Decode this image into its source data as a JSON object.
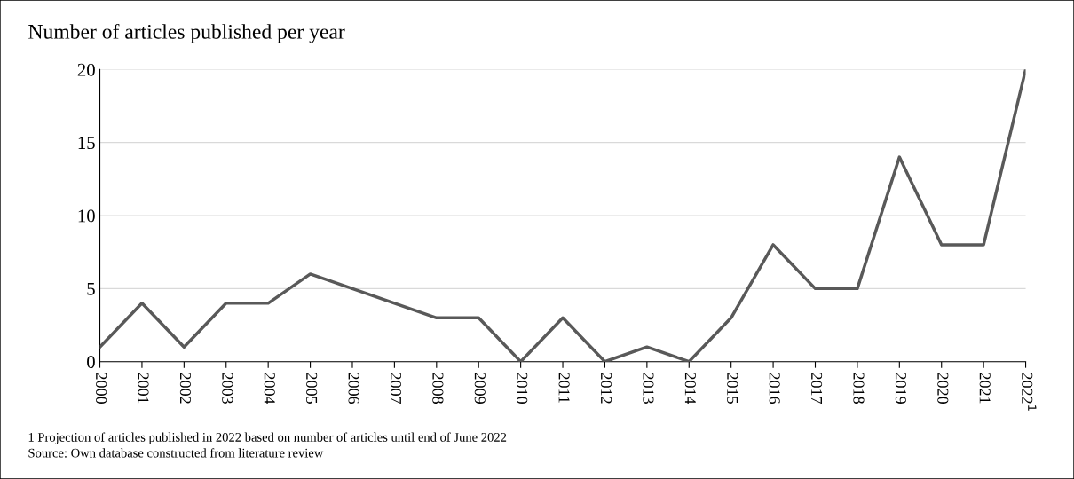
{
  "chart_data": {
    "type": "line",
    "title": "Number of articles published per year",
    "categories": [
      "2000",
      "2001",
      "2002",
      "2003",
      "2004",
      "2005",
      "2006",
      "2007",
      "2008",
      "2009",
      "2010",
      "2011",
      "2012",
      "2013",
      "2014",
      "2015",
      "2016",
      "2017",
      "2018",
      "2019",
      "2020",
      "2021",
      "2022$^{1}$"
    ],
    "series": [
      {
        "color": "#595959",
        "values": [
          1,
          4,
          1,
          4,
          4,
          6,
          5,
          4,
          3,
          3,
          0,
          3,
          0,
          1,
          0,
          3,
          8,
          5,
          5,
          14,
          8,
          8,
          20
        ]
      }
    ],
    "ylim": [
      0,
      20
    ],
    "yticks": [
      0,
      5,
      10,
      15,
      20
    ],
    "grid": "y",
    "legend": false,
    "marker": "none",
    "line_style": "solid",
    "annotations": [
      "1 Projection of articles published in 2022 based on number of articles until end of June 2022",
      "Source: Own database constructed from literature review"
    ]
  }
}
